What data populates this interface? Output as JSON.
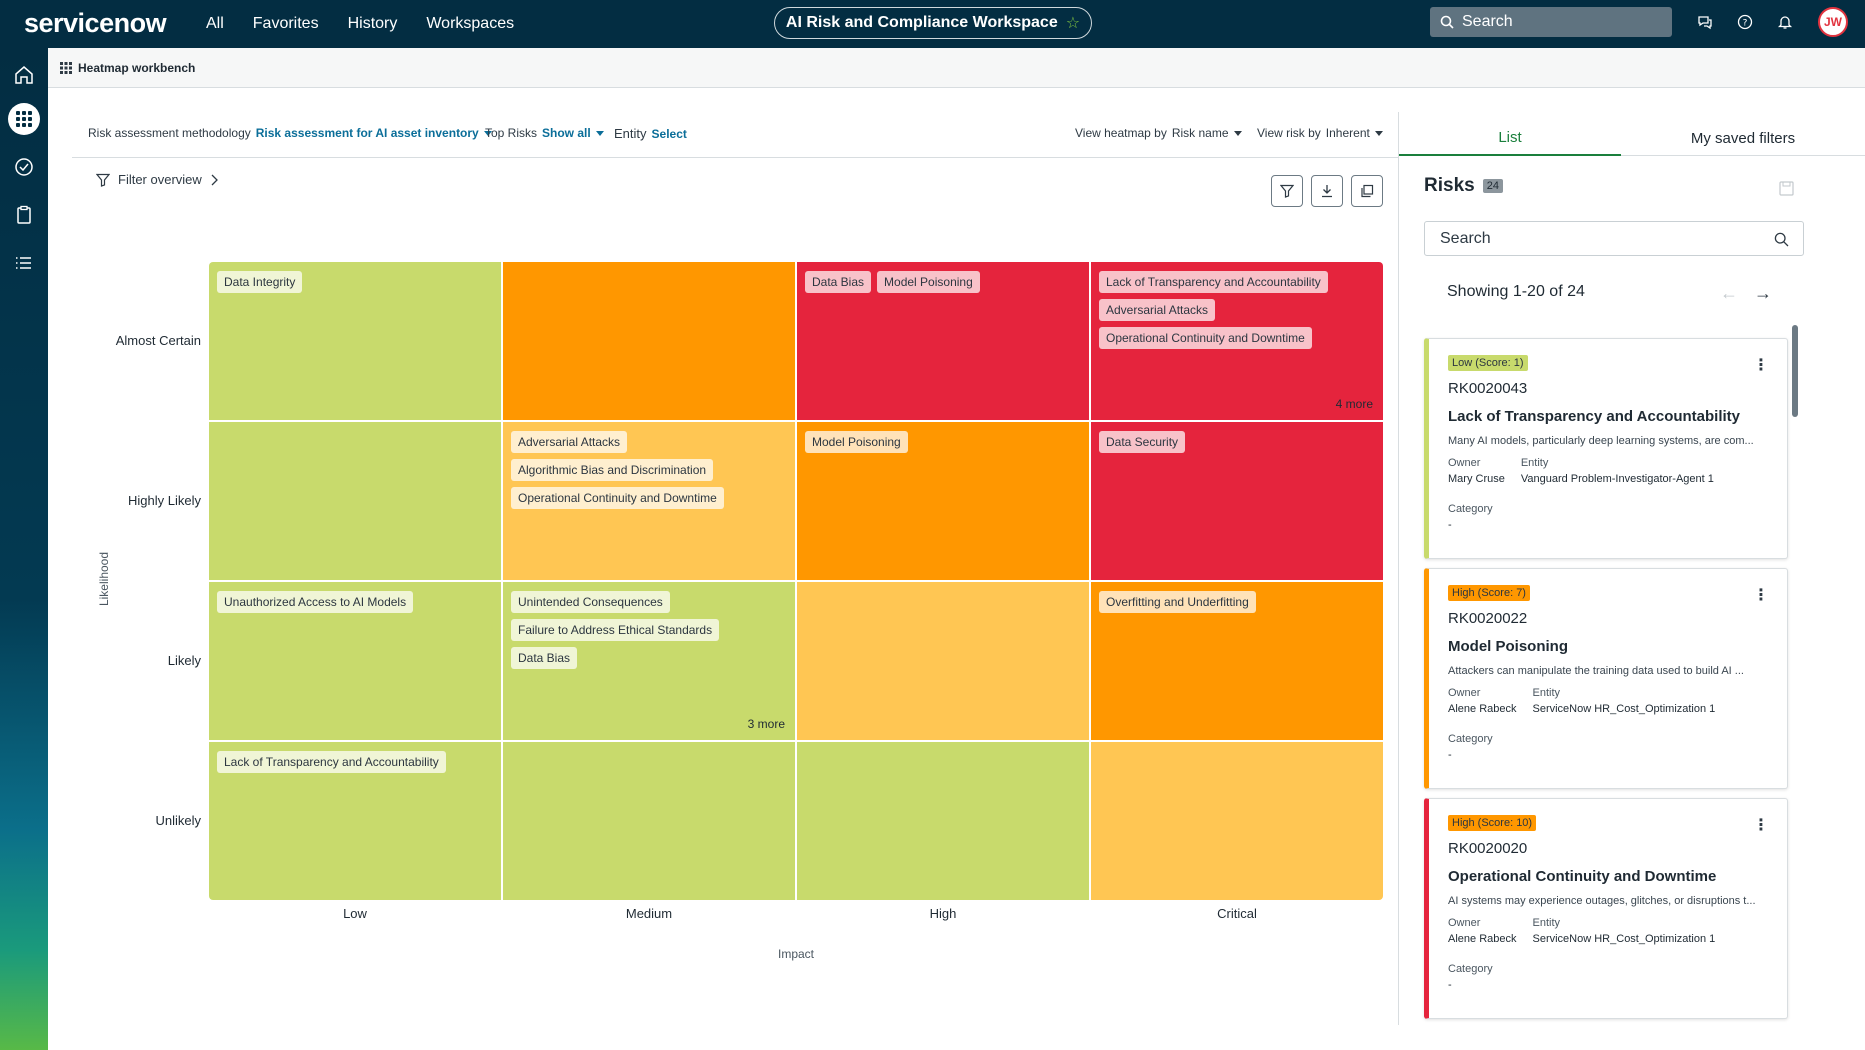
{
  "topbar": {
    "logo": "servicenow",
    "nav": [
      "All",
      "Favorites",
      "History",
      "Workspaces"
    ],
    "workspace_title": "AI Risk and Compliance Workspace",
    "search_placeholder": "Search",
    "avatar_initials": "JW"
  },
  "subheader": {
    "title": "Heatmap workbench"
  },
  "filters": {
    "methodology_label": "Risk assessment methodology",
    "methodology_value": "Risk assessment for AI asset inventory",
    "top_risks_label": "Top Risks",
    "top_risks_value": "Show all",
    "entity_label": "Entity",
    "entity_value": "Select",
    "view_heatmap_label": "View heatmap by",
    "view_heatmap_value": "Risk name",
    "view_risk_label": "View risk by",
    "view_risk_value": "Inherent",
    "filter_overview": "Filter overview"
  },
  "heatmap": {
    "y_axis_title": "Likelihood",
    "x_axis_title": "Impact",
    "rows": [
      "Almost Certain",
      "Highly Likely",
      "Likely",
      "Unlikely"
    ],
    "cols": [
      "Low",
      "Medium",
      "High",
      "Critical"
    ],
    "colors": {
      "green": "#c8da6c",
      "amber": "#ffc653",
      "orange": "#ff9700",
      "red": "#e5243d"
    },
    "cells": [
      [
        {
          "color": "green",
          "chips": [
            "Data Integrity"
          ],
          "more": ""
        },
        {
          "color": "orange",
          "chips": [],
          "more": ""
        },
        {
          "color": "red",
          "chips": [
            "Data Bias",
            "Model Poisoning"
          ],
          "more": ""
        },
        {
          "color": "red",
          "chips": [
            "Lack of Transparency and Accountability",
            "Adversarial Attacks",
            "Operational Continuity and Downtime"
          ],
          "more": "4 more"
        }
      ],
      [
        {
          "color": "green",
          "chips": [],
          "more": ""
        },
        {
          "color": "amber",
          "chips": [
            "Adversarial Attacks",
            "Algorithmic Bias and Discrimination",
            "Operational Continuity and Downtime"
          ],
          "more": ""
        },
        {
          "color": "orange",
          "chips": [
            "Model Poisoning"
          ],
          "more": ""
        },
        {
          "color": "red",
          "chips": [
            "Data Security"
          ],
          "more": ""
        }
      ],
      [
        {
          "color": "green",
          "chips": [
            "Unauthorized Access to AI Models"
          ],
          "more": ""
        },
        {
          "color": "green",
          "chips": [
            "Unintended Consequences",
            "Failure to Address Ethical Standards",
            "Data Bias"
          ],
          "more": "3 more"
        },
        {
          "color": "amber",
          "chips": [],
          "more": ""
        },
        {
          "color": "orange",
          "chips": [
            "Overfitting and Underfitting"
          ],
          "more": ""
        }
      ],
      [
        {
          "color": "green",
          "chips": [
            "Lack of Transparency and Accountability"
          ],
          "more": ""
        },
        {
          "color": "green",
          "chips": [],
          "more": ""
        },
        {
          "color": "green",
          "chips": [],
          "more": ""
        },
        {
          "color": "amber",
          "chips": [],
          "more": ""
        }
      ]
    ]
  },
  "panel": {
    "tabs": [
      "List",
      "My saved filters"
    ],
    "title": "Risks",
    "count": "24",
    "search_placeholder": "Search",
    "showing": "Showing 1-20 of 24",
    "owner_label": "Owner",
    "entity_label": "Entity",
    "category_label": "Category",
    "cards": [
      {
        "badge": "Low (Score: 1)",
        "badge_color": "#c8da6c",
        "bar_color": "#c8da6c",
        "number": "RK0020043",
        "title": "Lack of Transparency and Accountability",
        "desc": "Many AI models, particularly deep learning systems, are com...",
        "owner": "Mary Cruse",
        "entity": "Vanguard Problem-Investigator-Agent 1",
        "category": "-"
      },
      {
        "badge": "High (Score: 7)",
        "badge_color": "#ff9700",
        "bar_color": "#ff9700",
        "number": "RK0020022",
        "title": "Model Poisoning",
        "desc": "Attackers can manipulate the training data used to build AI ...",
        "owner": "Alene Rabeck",
        "entity": "ServiceNow HR_Cost_Optimization 1",
        "category": "-"
      },
      {
        "badge": "High (Score: 10)",
        "badge_color": "#ff9700",
        "bar_color": "#e5243d",
        "number": "RK0020020",
        "title": "Operational Continuity and Downtime",
        "desc": "AI systems may experience outages, glitches, or disruptions t...",
        "owner": "Alene Rabeck",
        "entity": "ServiceNow HR_Cost_Optimization 1",
        "category": "-"
      }
    ]
  }
}
